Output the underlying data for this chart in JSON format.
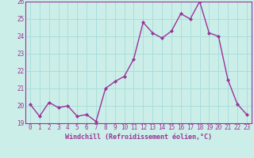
{
  "x": [
    0,
    1,
    2,
    3,
    4,
    5,
    6,
    7,
    8,
    9,
    10,
    11,
    12,
    13,
    14,
    15,
    16,
    17,
    18,
    19,
    20,
    21,
    22,
    23
  ],
  "y": [
    20.1,
    19.4,
    20.2,
    19.9,
    20.0,
    19.4,
    19.5,
    19.1,
    21.0,
    21.4,
    21.7,
    22.7,
    24.8,
    24.2,
    23.9,
    24.3,
    25.3,
    25.0,
    26.0,
    24.2,
    24.0,
    21.5,
    20.1,
    19.5
  ],
  "xlim": [
    -0.5,
    23.5
  ],
  "ylim": [
    19,
    26
  ],
  "yticks": [
    19,
    20,
    21,
    22,
    23,
    24,
    25,
    26
  ],
  "xticks": [
    0,
    1,
    2,
    3,
    4,
    5,
    6,
    7,
    8,
    9,
    10,
    11,
    12,
    13,
    14,
    15,
    16,
    17,
    18,
    19,
    20,
    21,
    22,
    23
  ],
  "line_color": "#993399",
  "marker": "D",
  "marker_size": 2.0,
  "line_width": 1.0,
  "bg_color": "#cceee8",
  "grid_color": "#aadddd",
  "xlabel": "Windchill (Refroidissement éolien,°C)",
  "xlabel_color": "#993399",
  "tick_color": "#993399",
  "label_fontsize": 6.0,
  "tick_fontsize": 5.5
}
